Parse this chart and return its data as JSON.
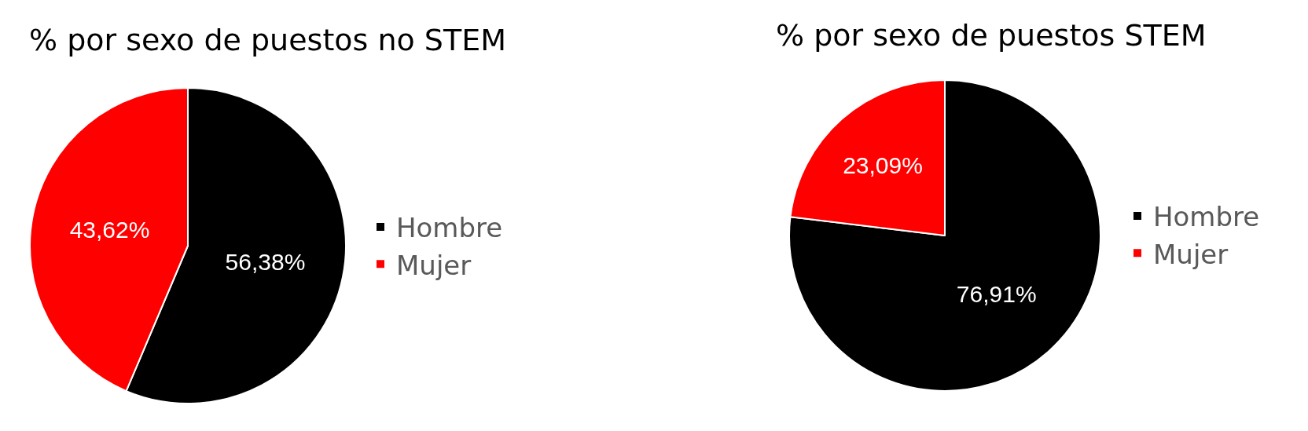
{
  "chart_data": [
    {
      "type": "pie",
      "title": "% por sexo de puestos no STEM",
      "categories": [
        "Hombre",
        "Mujer"
      ],
      "values": [
        56.38,
        43.62
      ],
      "colors": [
        "#000000",
        "#ff0000"
      ],
      "value_labels": [
        "56,38%",
        "43,62%"
      ],
      "legend": "right"
    },
    {
      "type": "pie",
      "title": "% por sexo de puestos STEM",
      "categories": [
        "Hombre",
        "Mujer"
      ],
      "values": [
        76.91,
        23.09
      ],
      "colors": [
        "#000000",
        "#ff0000"
      ],
      "value_labels": [
        "76,91%",
        "23,09%"
      ],
      "legend": "right"
    }
  ]
}
